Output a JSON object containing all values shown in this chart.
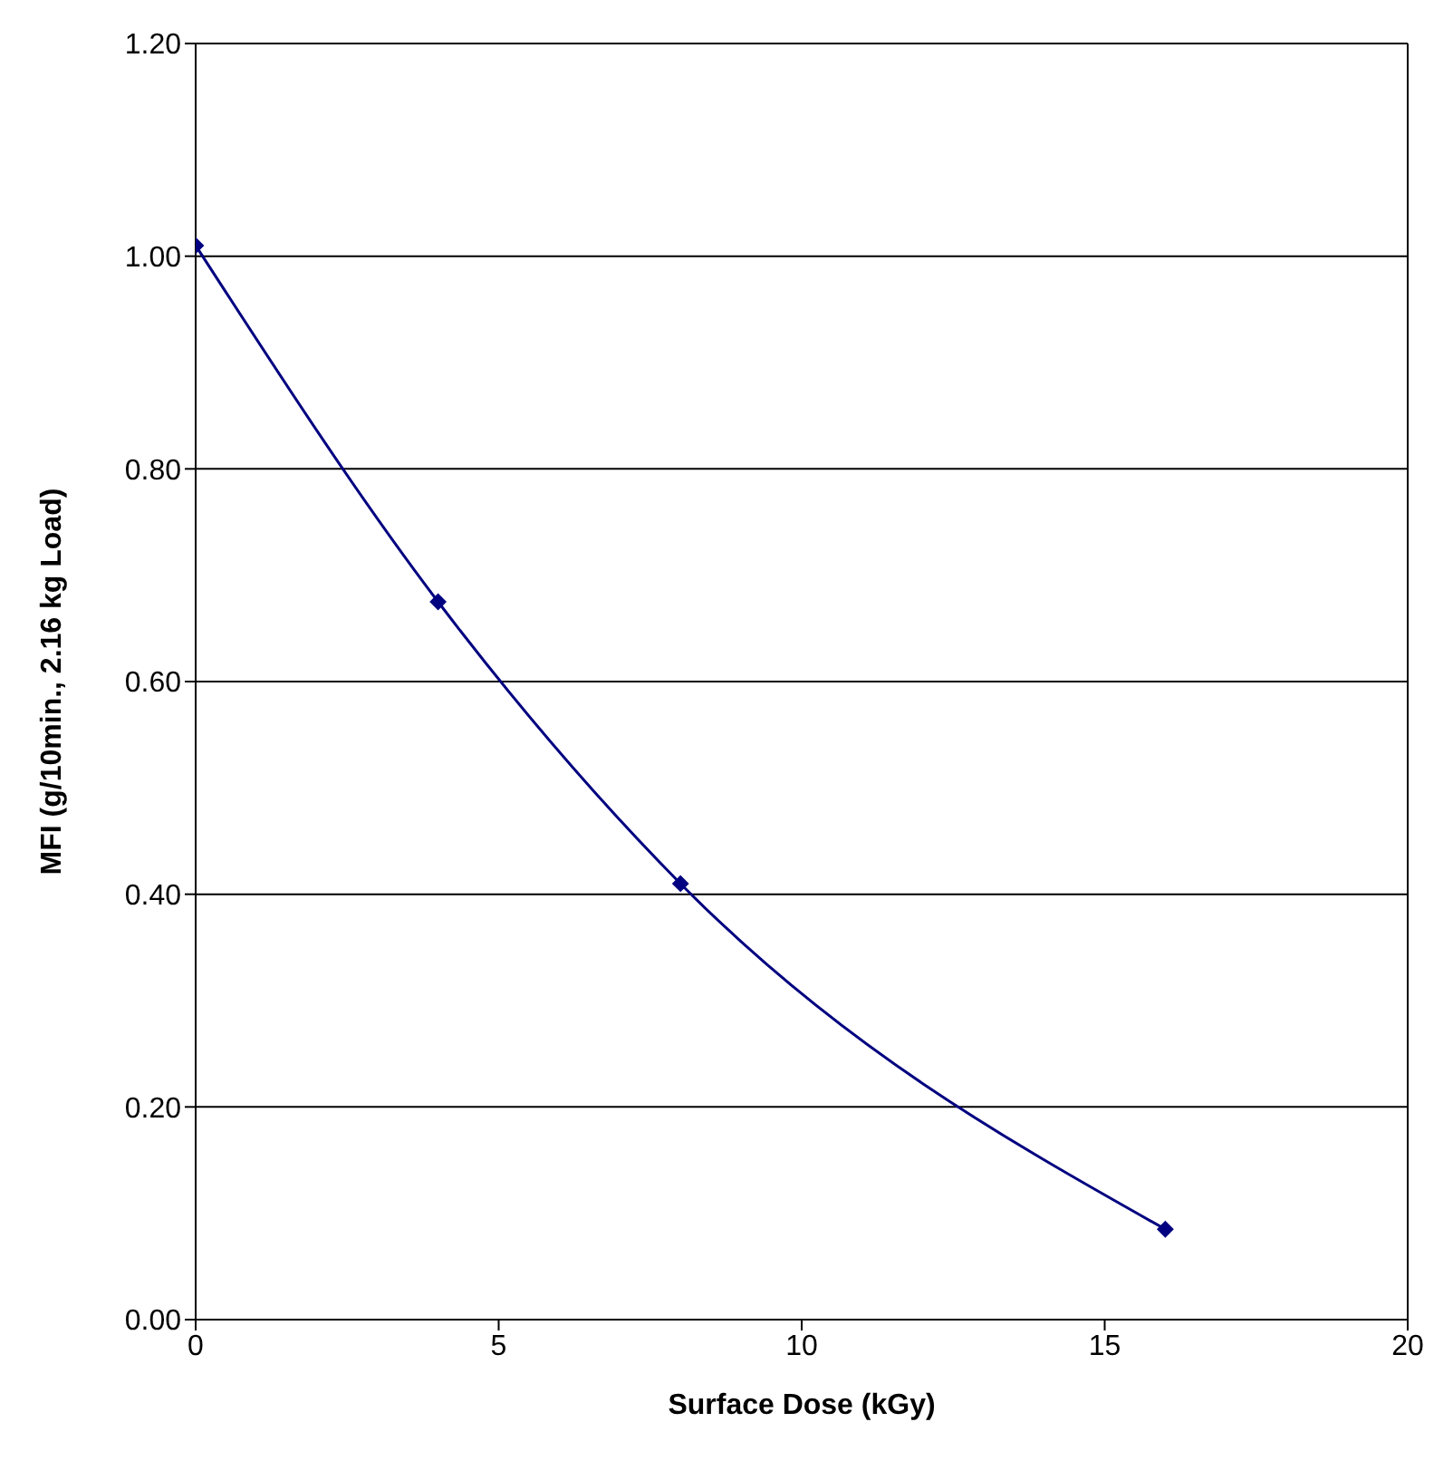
{
  "chart_data": {
    "type": "line",
    "xlabel": "Surface Dose (kGy)",
    "ylabel": "MFI (g/10min., 2.16 kg Load)",
    "x": [
      0,
      4,
      8,
      16
    ],
    "series": [
      {
        "color": "#000080",
        "values": [
          1.01,
          0.675,
          0.41,
          0.085
        ]
      }
    ],
    "xlim": [
      0,
      20
    ],
    "xticks": [
      0,
      5,
      10,
      15,
      20
    ],
    "ylim": [
      0,
      1.2
    ],
    "yticks": [
      {
        "value": 0,
        "label": "0.00"
      },
      {
        "value": 0.2,
        "label": "0.20"
      },
      {
        "value": 0.4,
        "label": "0.40"
      },
      {
        "value": 0.6,
        "label": "0.60"
      },
      {
        "value": 0.8,
        "label": "0.80"
      },
      {
        "value": 1,
        "label": "1.00"
      },
      {
        "value": 1.2,
        "label": "1.20"
      }
    ],
    "grid": "y",
    "legend": false,
    "marker": "diamond",
    "line_style": "solid"
  }
}
